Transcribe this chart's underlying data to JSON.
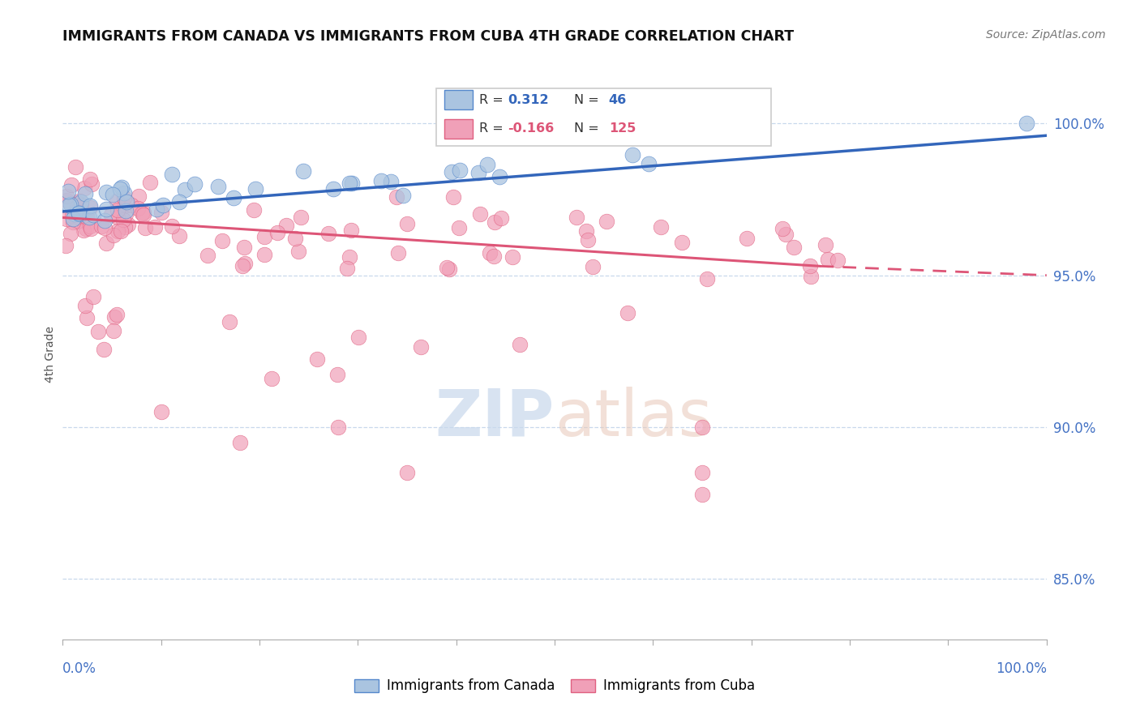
{
  "title": "IMMIGRANTS FROM CANADA VS IMMIGRANTS FROM CUBA 4TH GRADE CORRELATION CHART",
  "source": "Source: ZipAtlas.com",
  "ylabel": "4th Grade",
  "right_yticks": [
    85.0,
    90.0,
    95.0,
    100.0
  ],
  "canada_color": "#aac4e0",
  "canada_edge_color": "#5588cc",
  "canada_line_color": "#3366bb",
  "cuba_color": "#f0a0b8",
  "cuba_edge_color": "#e06080",
  "cuba_line_color": "#dd5577",
  "canada_label": "Immigrants from Canada",
  "cuba_label": "Immigrants from Cuba",
  "canada_R": 0.312,
  "canada_N": 46,
  "cuba_R": -0.166,
  "cuba_N": 125,
  "xlim": [
    0,
    100
  ],
  "ylim": [
    83.0,
    101.8
  ],
  "watermark_zip": "ZIP",
  "watermark_atlas": "atlas",
  "bg_color": "#ffffff",
  "grid_color": "#c8d8ec",
  "tick_color": "#aaaaaa",
  "label_color": "#4472c4",
  "title_color": "#111111",
  "source_color": "#777777",
  "ylabel_color": "#555555",
  "legend_r_color_canada": "#3366bb",
  "legend_r_color_cuba": "#dd5577",
  "legend_n_color_canada": "#3366bb",
  "legend_n_color_cuba": "#dd5577"
}
